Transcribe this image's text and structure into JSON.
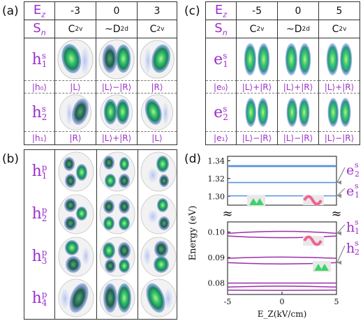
{
  "panel_a": {
    "label": "(a)",
    "row_field": "E",
    "row_field_sub": "z",
    "row_sym": "S",
    "row_sym_sub": "n",
    "fields": [
      "-3",
      "0",
      "3"
    ],
    "symmetries": [
      "C2v",
      "~D2d",
      "C2v"
    ],
    "sym_base": [
      "C",
      "~D",
      "C"
    ],
    "sym_sub": [
      "2v",
      "2d",
      "2v"
    ],
    "states": [
      {
        "base": "h",
        "sup": "s",
        "sub": "1",
        "basis": "|h₀⟩",
        "kets": [
          "|L⟩",
          "|L⟩−|R⟩",
          "|R⟩"
        ]
      },
      {
        "base": "h",
        "sup": "s",
        "sub": "2",
        "basis": "|h₁⟩",
        "kets": [
          "|R⟩",
          "|L⟩+|R⟩",
          "|L⟩"
        ]
      }
    ]
  },
  "panel_b": {
    "label": "(b)",
    "states": [
      {
        "base": "h",
        "sup": "p",
        "sub": "1"
      },
      {
        "base": "h",
        "sup": "p",
        "sub": "2"
      },
      {
        "base": "h",
        "sup": "p",
        "sub": "3"
      },
      {
        "base": "h",
        "sup": "p",
        "sub": "4"
      }
    ]
  },
  "panel_c": {
    "label": "(c)",
    "fields": [
      "-5",
      "0",
      "5"
    ],
    "sym_base": [
      "C",
      "~D",
      "C"
    ],
    "sym_sub": [
      "2v",
      "2d",
      "2v"
    ],
    "states": [
      {
        "base": "e",
        "sup": "s",
        "sub": "1",
        "basis": "|e₀⟩",
        "kets": [
          "|L⟩+|R⟩",
          "|L⟩+|R⟩",
          "|L⟩+|R⟩"
        ]
      },
      {
        "base": "e",
        "sup": "s",
        "sub": "2",
        "basis": "|e₁⟩",
        "kets": [
          "|L⟩−|R⟩",
          "|L⟩−|R⟩",
          "|L⟩−|R⟩"
        ]
      }
    ]
  },
  "panel_d": {
    "label": "(d)",
    "chart_data": {
      "type": "line",
      "xlabel": "E_Z(kV/cm)",
      "ylabel": "Energy (eV)",
      "xlim": [
        -5,
        5
      ],
      "xticks": [
        -5,
        0,
        5
      ],
      "yticks_upper": [
        1.3,
        1.32,
        1.34
      ],
      "yticks_lower": [
        0.08,
        0.09,
        0.1
      ],
      "upper_ylim": [
        1.29,
        1.345
      ],
      "lower_ylim": [
        0.0755,
        0.104
      ],
      "series_upper": [
        {
          "values": [
            1.3345,
            1.3345,
            1.3345
          ],
          "color": "#5b8fde"
        },
        {
          "values": [
            1.3335,
            1.3335,
            1.3335
          ],
          "color": "#5b8fde"
        },
        {
          "values": [
            1.3155,
            1.3155,
            1.3155
          ],
          "color": "#5b8fde"
        },
        {
          "values": [
            1.3005,
            1.3005,
            1.3005
          ],
          "color": "#5b8fde"
        }
      ],
      "series_lower": [
        {
          "x": [
            -5,
            0,
            5
          ],
          "values": [
            0.0995,
            0.1003,
            0.0995
          ],
          "color": "#9b30a8"
        },
        {
          "x": [
            -5,
            0,
            5
          ],
          "values": [
            0.0985,
            0.0978,
            0.0985
          ],
          "color": "#9b30a8"
        },
        {
          "x": [
            -5,
            0,
            5
          ],
          "values": [
            0.0897,
            0.0902,
            0.0897
          ],
          "color": "#9b30a8"
        },
        {
          "x": [
            -5,
            0,
            5
          ],
          "values": [
            0.088,
            0.0875,
            0.088
          ],
          "color": "#9b30a8"
        },
        {
          "x": [
            -5,
            0,
            5
          ],
          "values": [
            0.08,
            0.08,
            0.08
          ],
          "color": "#9b30a8"
        },
        {
          "x": [
            -5,
            0,
            5
          ],
          "values": [
            0.0784,
            0.0788,
            0.0784
          ],
          "color": "#9b30a8"
        },
        {
          "x": [
            -5,
            0,
            5
          ],
          "values": [
            0.0772,
            0.0771,
            0.0772
          ],
          "color": "#9b30a8"
        }
      ],
      "annotations": [
        {
          "base": "e",
          "sup": "s",
          "sub": "2"
        },
        {
          "base": "e",
          "sup": "s",
          "sub": "1"
        },
        {
          "base": "h",
          "sup": "s",
          "sub": "1"
        },
        {
          "base": "h",
          "sup": "s",
          "sub": "2"
        }
      ],
      "break_marks": [
        {
          "label": "≈"
        },
        {
          "label": "≈"
        }
      ]
    }
  }
}
